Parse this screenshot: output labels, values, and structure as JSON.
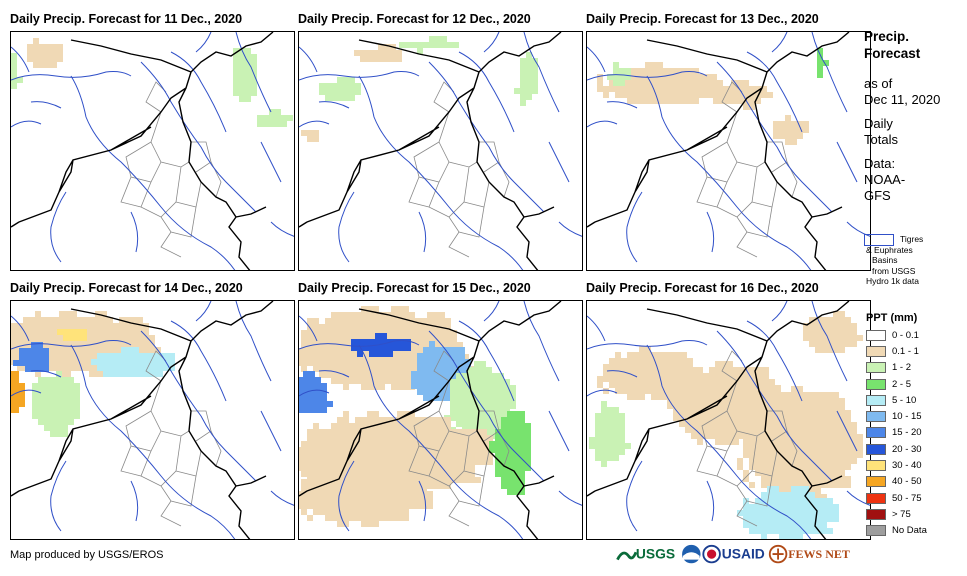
{
  "panels": [
    {
      "title": "Daily Precip. Forecast for 11 Dec., 2020"
    },
    {
      "title": "Daily Precip. Forecast for 12 Dec., 2020"
    },
    {
      "title": "Daily Precip. Forecast for 13 Dec., 2020"
    },
    {
      "title": "Daily Precip. Forecast for 14 Dec., 2020"
    },
    {
      "title": "Daily Precip. Forecast for 15 Dec., 2020"
    },
    {
      "title": "Daily Precip. Forecast for 16 Dec., 2020"
    }
  ],
  "side": {
    "title_line1": "Precip.",
    "title_line2": "Forecast",
    "asof_line1": "as of",
    "asof_line2": "Dec 11, 2020",
    "totals_line1": "Daily",
    "totals_line2": "Totals",
    "data_line1": "Data:",
    "data_line2": "NOAA-",
    "data_line3": "GFS"
  },
  "basin_key": {
    "line1": "Tigres",
    "line2": "& Euphrates",
    "line3": "Basins",
    "line4": "from USGS",
    "line5": "Hydro 1k data"
  },
  "legend": {
    "title": "PPT (mm)",
    "items": [
      {
        "label": "0 - 0.1",
        "color": "#ffffff"
      },
      {
        "label": "0.1 - 1",
        "color": "#f0d9b5"
      },
      {
        "label": "1 - 2",
        "color": "#c9f2b4"
      },
      {
        "label": "2 - 5",
        "color": "#78e36e"
      },
      {
        "label": "5 - 10",
        "color": "#b5ecf5"
      },
      {
        "label": "10 - 15",
        "color": "#7fbaf0"
      },
      {
        "label": "15 - 20",
        "color": "#4d86e8"
      },
      {
        "label": "20 - 30",
        "color": "#2656d9"
      },
      {
        "label": "30 - 40",
        "color": "#ffe37a"
      },
      {
        "label": "40 - 50",
        "color": "#f5a623"
      },
      {
        "label": "50 - 75",
        "color": "#ee3311"
      },
      {
        "label": "> 75",
        "color": "#a01010"
      },
      {
        "label": "No Data",
        "color": "#9e9e9e"
      }
    ]
  },
  "credit": "Map produced by USGS/EROS",
  "logos": {
    "usgs": "USGS",
    "usaid": "USAID",
    "fews": "FEWS NET"
  }
}
